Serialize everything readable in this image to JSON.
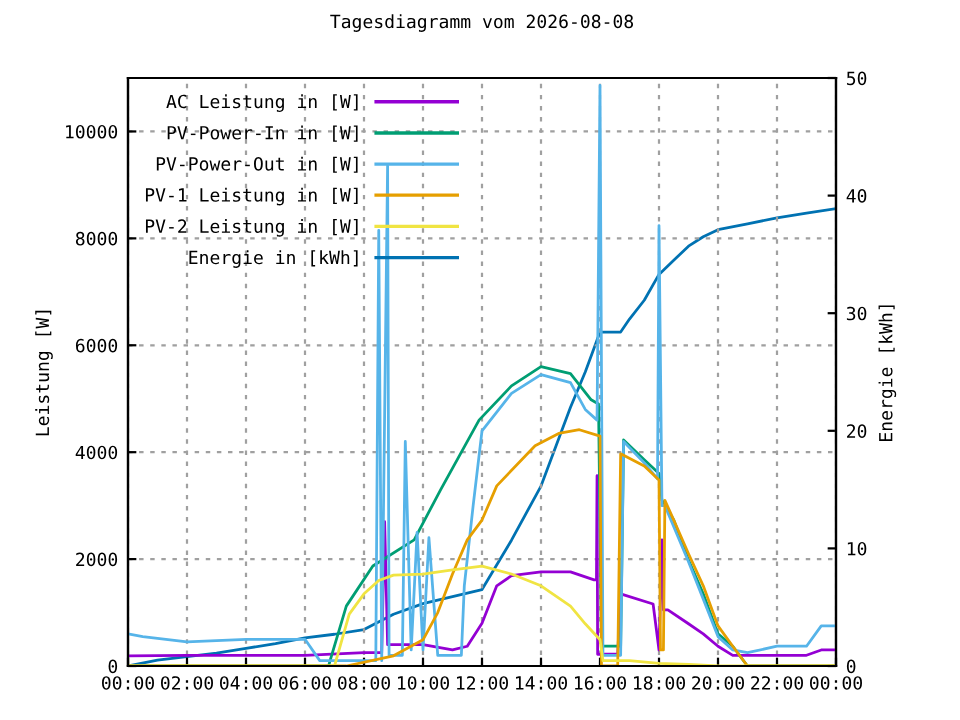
{
  "chart_data": {
    "type": "line",
    "title": "Tagesdiagramm vom 2026-08-08",
    "ylabel": "Leistung [W]",
    "y2label": "Energie [kWh]",
    "xlim": [
      0,
      24
    ],
    "xticks": [
      {
        "value": 0,
        "label": "00:00"
      },
      {
        "value": 2,
        "label": "02:00"
      },
      {
        "value": 4,
        "label": "04:00"
      },
      {
        "value": 6,
        "label": "06:00"
      },
      {
        "value": 8,
        "label": "08:00"
      },
      {
        "value": 10,
        "label": "10:00"
      },
      {
        "value": 12,
        "label": "12:00"
      },
      {
        "value": 14,
        "label": "14:00"
      },
      {
        "value": 16,
        "label": "16:00"
      },
      {
        "value": 18,
        "label": "18:00"
      },
      {
        "value": 20,
        "label": "20:00"
      },
      {
        "value": 22,
        "label": "22:00"
      },
      {
        "value": 24,
        "label": "00:00"
      }
    ],
    "ylim": [
      0,
      11000
    ],
    "yticks": [
      0,
      2000,
      4000,
      6000,
      8000,
      10000
    ],
    "y2lim": [
      0,
      50
    ],
    "y2ticks": [
      0,
      10,
      20,
      30,
      40,
      50
    ],
    "grid": true,
    "legend": "top left",
    "series": [
      {
        "name": "AC Leistung in [W]",
        "color": "#9400d3",
        "x": [
          0,
          2,
          4,
          6,
          8,
          8.6,
          8.7,
          8.8,
          9.3,
          10,
          11,
          11.5,
          12,
          12.5,
          13,
          14,
          15,
          15.8,
          15.88,
          15.9,
          15.92,
          16.6,
          16.7,
          17.8,
          18.0,
          18.1,
          18.15,
          18.3,
          19,
          19.5,
          20,
          20.5,
          21,
          22,
          23,
          23.5,
          24
        ],
        "values": [
          190,
          200,
          200,
          200,
          250,
          250,
          2700,
          400,
          400,
          400,
          300,
          370,
          800,
          1500,
          1690,
          1760,
          1760,
          1610,
          1610,
          3560,
          220,
          220,
          1350,
          1160,
          300,
          2360,
          1050,
          1050,
          790,
          600,
          370,
          200,
          200,
          200,
          200,
          300,
          300
        ]
      },
      {
        "name": "PV-Power-In in [W]",
        "color": "#009e73",
        "x": [
          0,
          6.8,
          6.85,
          7.4,
          8.3,
          9.7,
          10.6,
          11.9,
          13,
          14,
          15,
          15.7,
          15.95,
          16.05,
          16.7,
          16.8,
          17.5,
          18.0,
          18.1,
          18.5,
          19,
          19.5,
          20,
          20.5,
          21,
          24
        ],
        "values": [
          0,
          0,
          100,
          1120,
          1870,
          2360,
          3300,
          4600,
          5240,
          5600,
          5470,
          4980,
          4900,
          370,
          370,
          4230,
          3860,
          3600,
          3100,
          2730,
          1980,
          1350,
          600,
          370,
          0,
          0
        ]
      },
      {
        "name": "PV-Power-Out in [W]",
        "color": "#56b4e9",
        "x": [
          0,
          0.5,
          2,
          4,
          6,
          6.5,
          7.5,
          8.4,
          8.5,
          8.6,
          8.8,
          8.85,
          8.9,
          9.3,
          9.4,
          9.6,
          9.8,
          10.0,
          10.2,
          10.5,
          11.3,
          11.4,
          11.7,
          12,
          13,
          14,
          15,
          15.5,
          15.9,
          16.0,
          16.1,
          16.7,
          16.8,
          17.5,
          17.95,
          18.0,
          18.1,
          18.2,
          19,
          20,
          20.5,
          21,
          22,
          23,
          23.5,
          24
        ],
        "values": [
          600,
          550,
          450,
          500,
          500,
          100,
          100,
          100,
          8150,
          100,
          9360,
          200,
          200,
          200,
          4200,
          300,
          2500,
          300,
          2400,
          200,
          200,
          1500,
          3000,
          4400,
          5100,
          5450,
          5300,
          4800,
          4600,
          10860,
          200,
          200,
          4200,
          3800,
          3500,
          8240,
          3000,
          3000,
          1950,
          550,
          300,
          250,
          370,
          370,
          750,
          750
        ]
      },
      {
        "name": "PV-1 Leistung in [W]",
        "color": "#e69f00",
        "x": [
          0,
          7.4,
          9,
          10,
          10.5,
          11,
          11.5,
          12,
          12.5,
          13.8,
          14.6,
          15.3,
          16.0,
          16.05,
          16.6,
          16.7,
          17.5,
          18.0,
          18.05,
          18.15,
          18.2,
          18.5,
          19,
          19.5,
          20,
          20.5,
          21,
          24
        ],
        "values": [
          0,
          0,
          190,
          490,
          1000,
          1720,
          2360,
          2730,
          3370,
          4120,
          4350,
          4420,
          4300,
          0,
          0,
          3970,
          3740,
          3480,
          300,
          300,
          3100,
          2730,
          2100,
          1500,
          750,
          370,
          0,
          0
        ]
      },
      {
        "name": "PV-2 Leistung in [W]",
        "color": "#f0e442",
        "x": [
          0,
          7.0,
          7.5,
          8,
          8.5,
          9,
          10,
          11,
          12,
          13,
          14,
          15,
          15.5,
          16.0,
          16.1,
          17,
          18,
          19,
          20,
          24
        ],
        "values": [
          0,
          0,
          970,
          1350,
          1600,
          1700,
          1720,
          1800,
          1870,
          1720,
          1500,
          1120,
          790,
          490,
          100,
          100,
          50,
          30,
          0,
          0
        ]
      },
      {
        "name": "Energie in [kWh]",
        "color": "#0072b2",
        "axis": "y2",
        "x": [
          0,
          1,
          2,
          3,
          4,
          5,
          6,
          7,
          8,
          9,
          10,
          11,
          12,
          13,
          14,
          15,
          15.5,
          16,
          16.7,
          17,
          17.5,
          18,
          18.5,
          19,
          19.5,
          20,
          21,
          22,
          23,
          24
        ],
        "values": [
          0,
          0.5,
          0.8,
          1.1,
          1.5,
          1.9,
          2.4,
          2.7,
          3.1,
          4.4,
          5.3,
          5.9,
          6.5,
          10.7,
          15.3,
          22,
          25,
          28.4,
          28.4,
          29.5,
          31.1,
          33.3,
          34.5,
          35.7,
          36.5,
          37.1,
          37.6,
          38.1,
          38.5,
          38.9
        ]
      }
    ]
  }
}
